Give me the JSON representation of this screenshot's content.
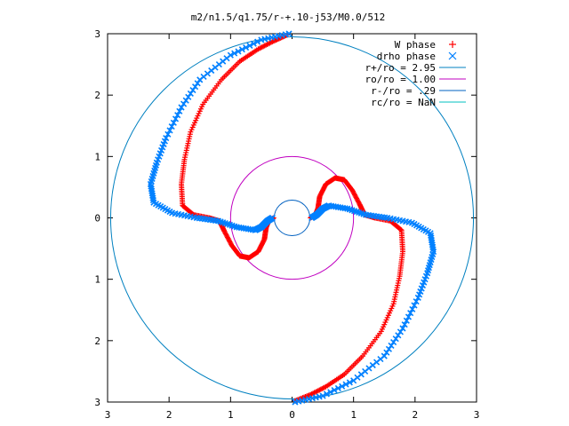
{
  "chart_data": {
    "type": "scatter",
    "title": "m2/n1.5/q1.75/r-+.10-j53/M0.0/512",
    "xlim": [
      -3,
      3
    ],
    "ylim": [
      -3,
      3
    ],
    "x_tick_values": [
      -3,
      -2,
      -1,
      0,
      1,
      2,
      3
    ],
    "x_tick_labels": [
      "3",
      "2",
      "1",
      "0",
      "1",
      "2",
      "3"
    ],
    "y_tick_values": [
      3,
      2,
      1,
      0,
      -1,
      -2,
      -3
    ],
    "y_tick_labels": [
      "3",
      "2",
      "1",
      "0",
      "1",
      "2",
      "3"
    ],
    "grid": false,
    "legend_position": "top-right",
    "series": [
      {
        "name": "W phase",
        "marker": "plus",
        "color": "#ff0000",
        "arms": [
          [
            [
              -0.08,
              2.98
            ],
            [
              -0.3,
              2.88
            ],
            [
              -0.55,
              2.75
            ],
            [
              -0.85,
              2.55
            ],
            [
              -1.15,
              2.25
            ],
            [
              -1.45,
              1.85
            ],
            [
              -1.65,
              1.4
            ],
            [
              -1.75,
              0.95
            ],
            [
              -1.8,
              0.55
            ],
            [
              -1.78,
              0.2
            ],
            [
              -1.6,
              0.05
            ],
            [
              -1.35,
              0.0
            ],
            [
              -1.18,
              -0.05
            ],
            [
              -1.1,
              -0.22
            ],
            [
              -0.98,
              -0.45
            ],
            [
              -0.85,
              -0.62
            ],
            [
              -0.7,
              -0.65
            ],
            [
              -0.55,
              -0.55
            ],
            [
              -0.45,
              -0.35
            ],
            [
              -0.42,
              -0.15
            ],
            [
              -0.38,
              -0.05
            ],
            [
              -0.3,
              0.0
            ]
          ],
          [
            [
              0.05,
              -2.98
            ],
            [
              0.3,
              -2.88
            ],
            [
              0.55,
              -2.75
            ],
            [
              0.85,
              -2.55
            ],
            [
              1.15,
              -2.25
            ],
            [
              1.45,
              -1.85
            ],
            [
              1.65,
              -1.4
            ],
            [
              1.75,
              -0.95
            ],
            [
              1.8,
              -0.55
            ],
            [
              1.78,
              -0.2
            ],
            [
              1.6,
              -0.05
            ],
            [
              1.35,
              0.0
            ],
            [
              1.18,
              0.05
            ],
            [
              1.1,
              0.22
            ],
            [
              0.98,
              0.45
            ],
            [
              0.85,
              0.62
            ],
            [
              0.7,
              0.65
            ],
            [
              0.55,
              0.55
            ],
            [
              0.45,
              0.35
            ],
            [
              0.42,
              0.15
            ],
            [
              0.38,
              0.05
            ],
            [
              0.3,
              0.0
            ]
          ]
        ]
      },
      {
        "name": "drho phase",
        "marker": "cross",
        "color": "#0080ff",
        "arms": [
          [
            [
              -0.05,
              3.0
            ],
            [
              -0.5,
              2.9
            ],
            [
              -1.0,
              2.65
            ],
            [
              -1.5,
              2.25
            ],
            [
              -1.8,
              1.8
            ],
            [
              -2.05,
              1.3
            ],
            [
              -2.2,
              0.9
            ],
            [
              -2.3,
              0.55
            ],
            [
              -2.25,
              0.25
            ],
            [
              -1.95,
              0.08
            ],
            [
              -1.55,
              0.0
            ],
            [
              -1.2,
              -0.05
            ],
            [
              -0.9,
              -0.15
            ],
            [
              -0.6,
              -0.2
            ],
            [
              -0.5,
              -0.15
            ],
            [
              -0.4,
              -0.05
            ],
            [
              -0.32,
              0.0
            ]
          ],
          [
            [
              0.05,
              -3.0
            ],
            [
              0.5,
              -2.9
            ],
            [
              1.0,
              -2.65
            ],
            [
              1.5,
              -2.25
            ],
            [
              1.8,
              -1.8
            ],
            [
              2.05,
              -1.3
            ],
            [
              2.2,
              -0.9
            ],
            [
              2.3,
              -0.55
            ],
            [
              2.25,
              -0.25
            ],
            [
              1.95,
              -0.08
            ],
            [
              1.55,
              0.0
            ],
            [
              1.2,
              0.05
            ],
            [
              0.9,
              0.15
            ],
            [
              0.6,
              0.2
            ],
            [
              0.5,
              0.15
            ],
            [
              0.4,
              0.05
            ],
            [
              0.32,
              0.0
            ]
          ]
        ]
      },
      {
        "name": "r+/ro = 2.95",
        "type": "circle",
        "radius": 2.95,
        "color": "#0080c0"
      },
      {
        "name": "ro/ro = 1.00",
        "type": "circle",
        "radius": 1.0,
        "color": "#c000c0"
      },
      {
        "name": "r-/ro = .29",
        "type": "circle",
        "radius": 0.29,
        "color": "#0060c0"
      },
      {
        "name": "rc/ro = NaN",
        "type": "circle",
        "radius": null,
        "color": "#00c0c0"
      }
    ]
  }
}
